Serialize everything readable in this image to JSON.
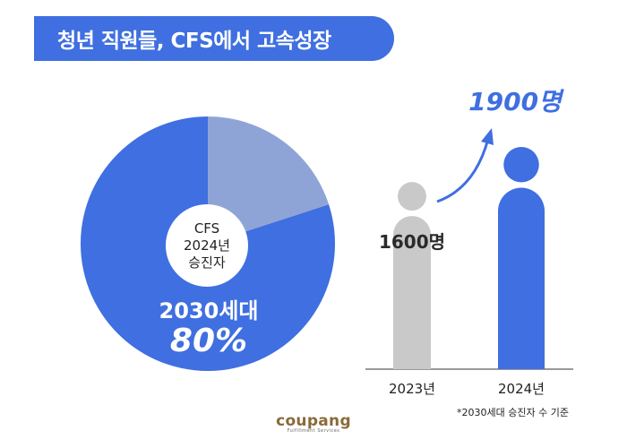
{
  "header": {
    "title": "청년 직원들, CFS에서 고속성장"
  },
  "pie": {
    "center_lines": [
      "CFS",
      "2024년",
      "승진자"
    ],
    "label_generation": "2030세대",
    "label_percent": "80%"
  },
  "bars": {
    "footnote": "*2030세대 승진자 수 기준"
  },
  "logo": {
    "word": "coupang",
    "sub": "Fulfillment Services"
  },
  "colors": {
    "primary": "#3f6fe0",
    "pie_rest": "#8fa4d6",
    "bar_2023": "#c9c9c9",
    "bar_2024": "#3f6fe0"
  },
  "chart_data": [
    {
      "type": "pie",
      "title": "CFS 2024년 승진자",
      "slices": [
        {
          "label": "2030세대",
          "value": 80,
          "color": "#3f6fe0"
        },
        {
          "label": "",
          "value": 20,
          "color": "#8fa4d6"
        }
      ]
    },
    {
      "type": "bar",
      "categories": [
        "2023년",
        "2024년"
      ],
      "values": [
        1600,
        1900
      ],
      "value_labels": [
        "1600명",
        "1900명"
      ],
      "colors": [
        "#c9c9c9",
        "#3f6fe0"
      ],
      "ylim": [
        0,
        1900
      ]
    }
  ]
}
